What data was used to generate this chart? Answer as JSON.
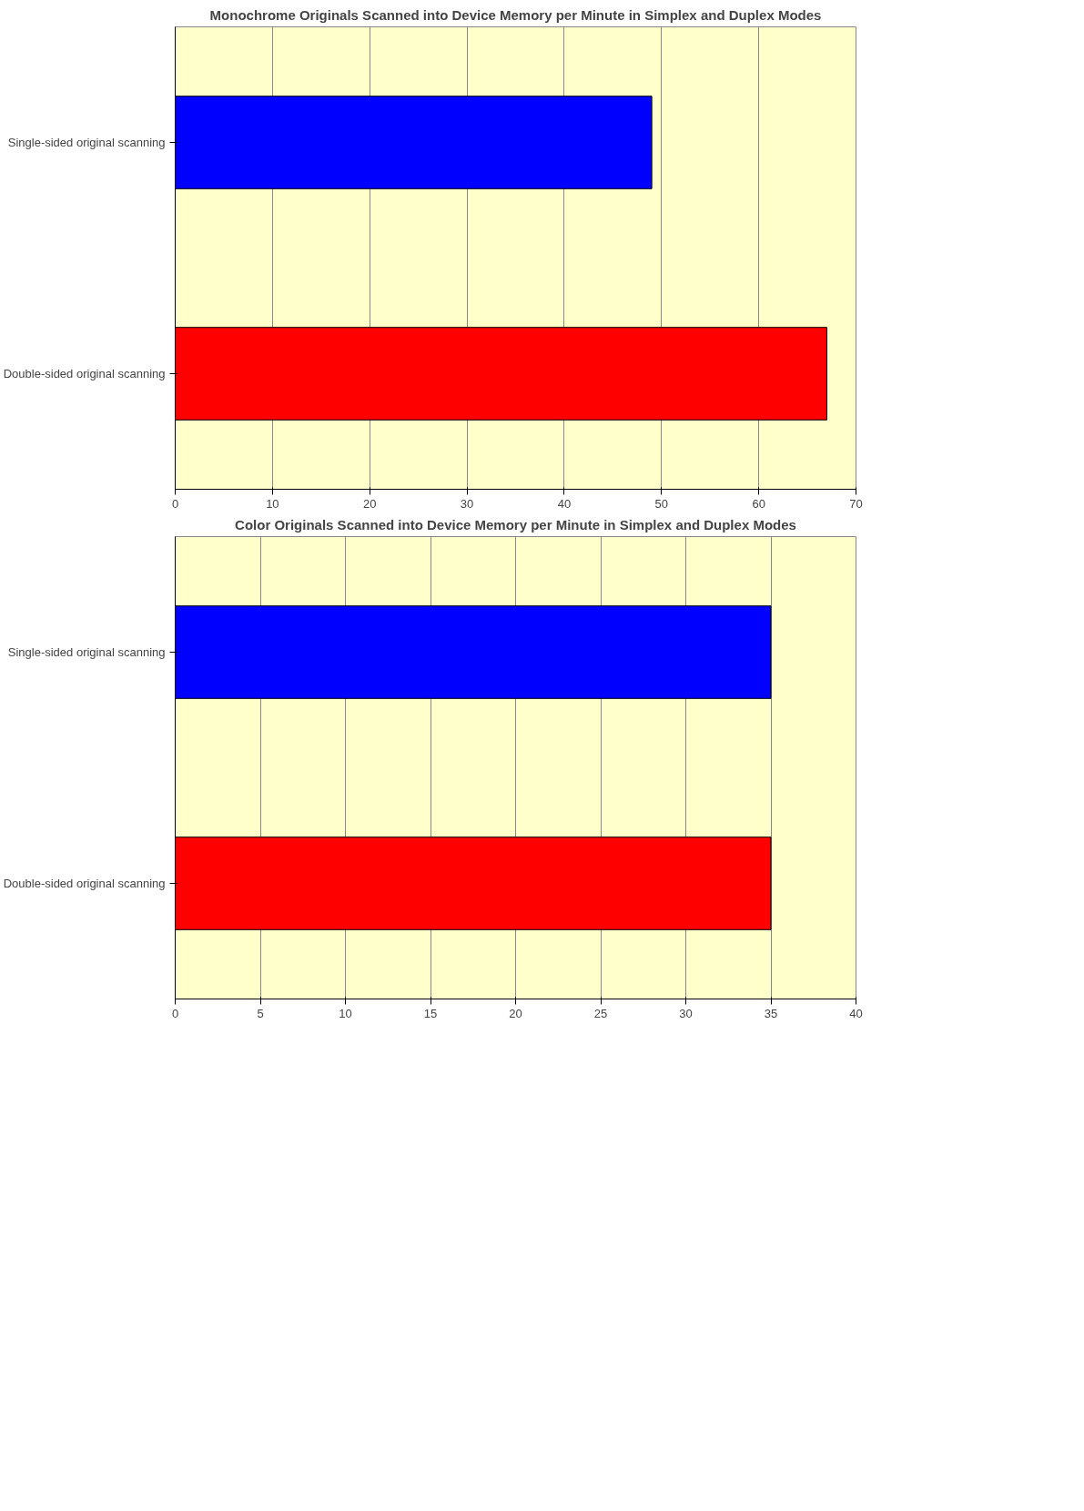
{
  "chart_data": [
    {
      "type": "bar",
      "orientation": "horizontal",
      "title": "Monochrome Originals Scanned into Device Memory per Minute in Simplex and Duplex Modes",
      "categories": [
        "Single-sided original scanning",
        "Double-sided original scanning"
      ],
      "values": [
        49,
        67
      ],
      "colors": [
        "#0000ff",
        "#ff0000"
      ],
      "xlim": [
        0,
        70
      ],
      "xticks": [
        0,
        10,
        20,
        30,
        40,
        50,
        60,
        70
      ],
      "grid": "x"
    },
    {
      "type": "bar",
      "orientation": "horizontal",
      "title": "Color Originals Scanned into Device Memory per Minute in Simplex and Duplex Modes",
      "categories": [
        "Single-sided original scanning",
        "Double-sided original scanning"
      ],
      "values": [
        35,
        35
      ],
      "colors": [
        "#0000ff",
        "#ff0000"
      ],
      "xlim": [
        0,
        40
      ],
      "xticks": [
        0,
        5,
        10,
        15,
        20,
        25,
        30,
        35,
        40
      ],
      "grid": "x"
    }
  ]
}
